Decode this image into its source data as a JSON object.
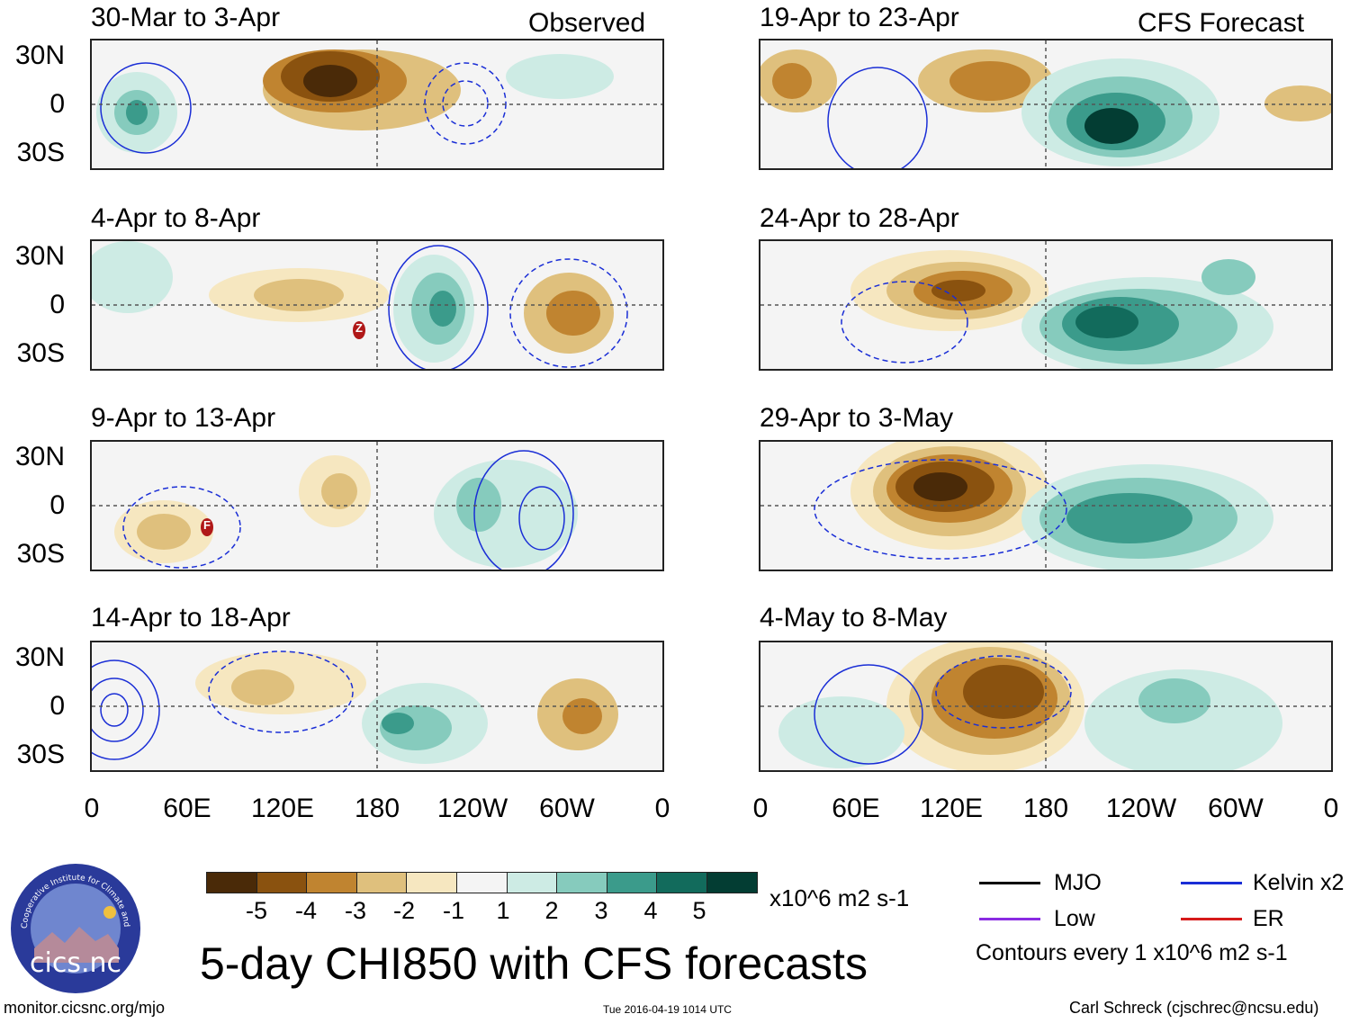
{
  "left_header": "Observed",
  "right_header": "CFS Forecast",
  "panels_left": [
    {
      "title": "30-Mar to 3-Apr"
    },
    {
      "title": "4-Apr to 8-Apr"
    },
    {
      "title": "9-Apr to 13-Apr"
    },
    {
      "title": "14-Apr to 18-Apr"
    }
  ],
  "panels_right": [
    {
      "title": "19-Apr to 23-Apr"
    },
    {
      "title": "24-Apr to 28-Apr"
    },
    {
      "title": "29-Apr to 3-May"
    },
    {
      "title": "4-May to 8-May"
    }
  ],
  "y_ticks": [
    "30N",
    "0",
    "30S"
  ],
  "x_ticks": [
    "0",
    "60E",
    "120E",
    "180",
    "120W",
    "60W",
    "0"
  ],
  "storm_labels": {
    "p2": "Z",
    "p3": "F"
  },
  "colorbar": {
    "colors": [
      "#4a2a08",
      "#8a520f",
      "#c08430",
      "#dfc07d",
      "#f6e7c0",
      "#f4f4f4",
      "#cdebe4",
      "#86cbbd",
      "#3b9b8b",
      "#126b5c",
      "#033d33"
    ],
    "labels": [
      "-5",
      "-4",
      "-3",
      "-2",
      "-1",
      "1",
      "2",
      "3",
      "4",
      "5"
    ],
    "units": "x10^6 m2 s-1"
  },
  "main_title": "5-day CHI850 with CFS forecasts",
  "logo_text": "cics.nc",
  "logo_ring_text": "Cooperative Institute for Climate and Satellites",
  "legend": {
    "items": [
      {
        "label": "MJO",
        "color": "#000000"
      },
      {
        "label": "Kelvin x2",
        "color": "#1a2ed6"
      },
      {
        "label": "Low",
        "color": "#8a2be2"
      },
      {
        "label": "ER",
        "color": "#d61a1a"
      }
    ],
    "note": "Contours every 1 x10^6 m2 s-1"
  },
  "footer": {
    "left": "monitor.cicsnc.org/mjo",
    "center": "Tue 2016-04-19 1014 UTC",
    "right": "Carl Schreck (cjschrec@ncsu.edu)"
  }
}
